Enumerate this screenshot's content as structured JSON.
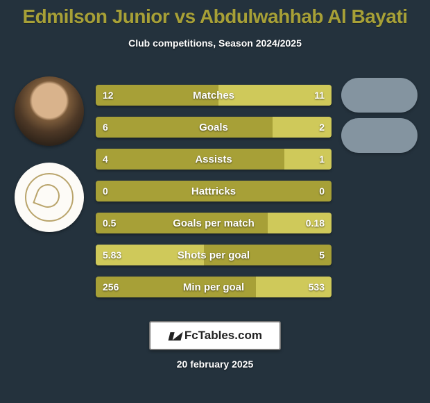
{
  "background_color": "#24323d",
  "title": "Edmilson Junior vs Abdulwahhab Al Bayati",
  "title_color": "#a7a037",
  "title_fontsize": 28,
  "subtitle": "Club competitions, Season 2024/2025",
  "subtitle_fontsize": 14,
  "player1": {
    "name": "Edmilson Junior"
  },
  "player2": {
    "name": "Abdulwahhab Al Bayati"
  },
  "ghost_color": "#8494a0",
  "bar": {
    "track_color": "#a7a037",
    "accent_color": "#cfc95a",
    "height": 30,
    "gap": 16,
    "radius": 4,
    "label_fontsize": 15,
    "value_fontsize": 14,
    "text_color": "#ffffff"
  },
  "rows": [
    {
      "label": "Matches",
      "left": "12",
      "right": "11",
      "left_pct": 52,
      "right_pct": 48
    },
    {
      "label": "Goals",
      "left": "6",
      "right": "2",
      "left_pct": 75,
      "right_pct": 25
    },
    {
      "label": "Assists",
      "left": "4",
      "right": "1",
      "left_pct": 80,
      "right_pct": 20
    },
    {
      "label": "Hattricks",
      "left": "0",
      "right": "0",
      "left_pct": 50,
      "right_pct": 50
    },
    {
      "label": "Goals per match",
      "left": "0.5",
      "right": "0.18",
      "left_pct": 73,
      "right_pct": 27
    },
    {
      "label": "Shots per goal",
      "left": "5.83",
      "right": "5",
      "left_pct": 46,
      "right_pct": 54
    },
    {
      "label": "Min per goal",
      "left": "256",
      "right": "533",
      "left_pct": 68,
      "right_pct": 32
    }
  ],
  "footer": {
    "brand": "FcTables.com",
    "mark": "📊",
    "border_color": "#777777",
    "bg_color": "#ffffff"
  },
  "date": "20 february 2025"
}
